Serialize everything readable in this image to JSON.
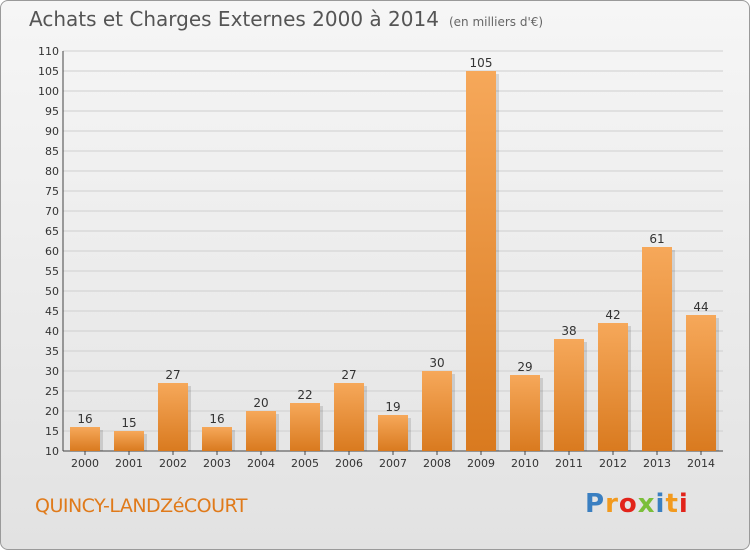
{
  "title": "Achats et Charges Externes 2000 à 2014",
  "subtitle": "(en milliers d'€)",
  "commune": "QUINCY-LANDZéCOURT",
  "logo": {
    "text": "Proxiti",
    "colors": [
      "#3a7fc1",
      "#f29a1e",
      "#e2231a",
      "#7bbf3a",
      "#3a7fc1",
      "#f29a1e",
      "#e2231a"
    ]
  },
  "colors": {
    "bar_light": "#f6a85a",
    "bar_dark": "#d97a1f",
    "grid": "#cfcfcf"
  },
  "chart_data": {
    "type": "bar",
    "title": "Achats et Charges Externes 2000 à 2014",
    "subtitle": "(en milliers d'€)",
    "xlabel": "",
    "ylabel": "",
    "categories": [
      "2000",
      "2001",
      "2002",
      "2003",
      "2004",
      "2005",
      "2006",
      "2007",
      "2008",
      "2009",
      "2010",
      "2011",
      "2012",
      "2013",
      "2014"
    ],
    "values": [
      16,
      15,
      27,
      16,
      20,
      22,
      27,
      19,
      30,
      105,
      29,
      38,
      42,
      61,
      44
    ],
    "ylim": [
      10,
      110
    ],
    "yticks": [
      10,
      15,
      20,
      25,
      30,
      35,
      40,
      45,
      50,
      55,
      60,
      65,
      70,
      75,
      80,
      85,
      90,
      95,
      100,
      105,
      110
    ],
    "grid": true,
    "legend": "none"
  }
}
